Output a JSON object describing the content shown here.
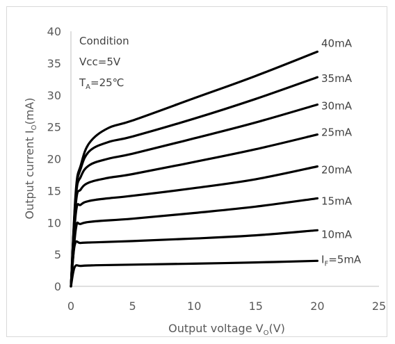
{
  "chart_data": {
    "type": "line",
    "xlabel": {
      "main": "Output voltage V",
      "sub": "O",
      "tail": "(V)"
    },
    "ylabel": {
      "main": "Output current I",
      "sub": "O",
      "tail": "(mA)"
    },
    "xlim": [
      0,
      25
    ],
    "ylim": [
      0,
      40
    ],
    "x_ticks": [
      "0",
      "5",
      "10",
      "15",
      "20",
      "25"
    ],
    "y_ticks": [
      "0",
      "5",
      "10",
      "15",
      "20",
      "25",
      "30",
      "35",
      "40"
    ],
    "grid": false,
    "conditions": {
      "line1": "Condition",
      "line2": "Vcc=5V",
      "line3_main": "T",
      "line3_sub": "A",
      "line3_tail": "=25℃"
    },
    "series": [
      {
        "name": "5mA",
        "label_main": "I",
        "label_sub": "F",
        "label_tail": "=5mA",
        "x": [
          0,
          0.3,
          0.8,
          2,
          5,
          10,
          15,
          20
        ],
        "y": [
          0,
          3.0,
          3.2,
          3.3,
          3.4,
          3.55,
          3.75,
          4.0
        ]
      },
      {
        "name": "10mA",
        "label_main": "10mA",
        "label_sub": "",
        "label_tail": "",
        "x": [
          0,
          0.3,
          0.8,
          2,
          5,
          10,
          15,
          20
        ],
        "y": [
          0,
          6.4,
          6.8,
          6.9,
          7.1,
          7.5,
          8.0,
          8.8
        ]
      },
      {
        "name": "15mA",
        "label_main": "15mA",
        "label_sub": "",
        "label_tail": "",
        "x": [
          0,
          0.4,
          0.8,
          2,
          5,
          10,
          15,
          20
        ],
        "y": [
          0,
          9.0,
          9.8,
          10.2,
          10.6,
          11.5,
          12.5,
          13.8
        ]
      },
      {
        "name": "20mA",
        "label_main": "20mA",
        "label_sub": "",
        "label_tail": "",
        "x": [
          0,
          0.4,
          0.8,
          1.5,
          3,
          5,
          10,
          15,
          20
        ],
        "y": [
          0,
          11.5,
          12.8,
          13.4,
          13.8,
          14.2,
          15.4,
          16.8,
          18.8
        ]
      },
      {
        "name": "25mA",
        "label_main": "25mA",
        "label_sub": "",
        "label_tail": "",
        "x": [
          0,
          0.4,
          0.8,
          1.5,
          3,
          5,
          10,
          15,
          20
        ],
        "y": [
          0,
          13.0,
          15.2,
          16.3,
          17.0,
          17.6,
          19.5,
          21.5,
          23.8
        ]
      },
      {
        "name": "30mA",
        "label_main": "30mA",
        "label_sub": "",
        "label_tail": "",
        "x": [
          0,
          0.4,
          0.8,
          1.5,
          3,
          5,
          10,
          15,
          20
        ],
        "y": [
          0,
          14.0,
          17.2,
          19.0,
          20.0,
          20.8,
          23.2,
          25.7,
          28.5
        ]
      },
      {
        "name": "35mA",
        "label_main": "35mA",
        "label_sub": "",
        "label_tail": "",
        "x": [
          0,
          0.4,
          0.8,
          1.5,
          3,
          5,
          10,
          15,
          20
        ],
        "y": [
          0,
          14.5,
          18.5,
          21.2,
          22.6,
          23.5,
          26.3,
          29.4,
          32.8
        ]
      },
      {
        "name": "40mA",
        "label_main": "40mA",
        "label_sub": "",
        "label_tail": "",
        "x": [
          0,
          0.4,
          0.8,
          1.5,
          3,
          5,
          10,
          15,
          20
        ],
        "y": [
          0,
          15.0,
          19.0,
          22.5,
          24.8,
          26.0,
          29.5,
          33.0,
          36.8
        ]
      }
    ],
    "colors": {
      "curve": "#000000",
      "axis": "#bfbfbf",
      "text": "#595959"
    }
  }
}
